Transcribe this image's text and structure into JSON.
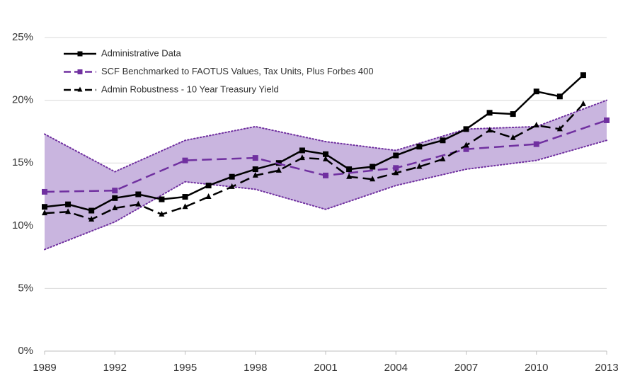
{
  "chart_data": {
    "type": "line",
    "xlim": [
      1989,
      2013
    ],
    "xticks": [
      1989,
      1992,
      1995,
      1998,
      2001,
      2004,
      2007,
      2010,
      2013
    ],
    "ylim": [
      0,
      25
    ],
    "yticks": [
      {
        "value": 0,
        "label": "0%"
      },
      {
        "value": 5,
        "label": "5%"
      },
      {
        "value": 10,
        "label": "10%"
      },
      {
        "value": 15,
        "label": "15%"
      },
      {
        "value": 20,
        "label": "20%"
      },
      {
        "value": 25,
        "label": "25%"
      }
    ],
    "grid": true,
    "legend": "top-left",
    "band": {
      "color": "#c9b5df",
      "edge_color": "#7030a0",
      "x": [
        1989,
        1992,
        1995,
        1998,
        2001,
        2004,
        2007,
        2010,
        2013
      ],
      "upper": [
        17.3,
        14.3,
        16.8,
        17.9,
        16.7,
        16.0,
        17.7,
        17.9,
        20.0
      ],
      "lower": [
        8.1,
        10.3,
        13.5,
        12.9,
        11.3,
        13.2,
        14.5,
        15.2,
        16.8
      ]
    },
    "series": [
      {
        "name": "Administrative Data",
        "color": "#000000",
        "dash": "solid",
        "marker": "square",
        "x": [
          1989,
          1990,
          1991,
          1992,
          1993,
          1994,
          1995,
          1996,
          1997,
          1998,
          1999,
          2000,
          2001,
          2002,
          2003,
          2004,
          2005,
          2006,
          2007,
          2008,
          2009,
          2010,
          2011,
          2012
        ],
        "values": [
          11.5,
          11.7,
          11.2,
          12.2,
          12.5,
          12.1,
          12.3,
          13.2,
          13.9,
          14.5,
          15.0,
          16.0,
          15.7,
          14.5,
          14.7,
          15.6,
          16.3,
          16.8,
          17.7,
          19.0,
          18.9,
          20.7,
          20.3,
          22.0
        ]
      },
      {
        "name": "SCF Benchmarked to FAOTUS Values, Tax Units, Plus Forbes 400",
        "color": "#7030a0",
        "dash": "dashed",
        "marker": "square",
        "x": [
          1989,
          1992,
          1995,
          1998,
          2001,
          2004,
          2007,
          2010,
          2013
        ],
        "values": [
          12.7,
          12.8,
          15.2,
          15.4,
          14.0,
          14.6,
          16.1,
          16.5,
          18.4
        ]
      },
      {
        "name": "Admin Robustness - 10 Year Treasury Yield",
        "color": "#000000",
        "dash": "dashed",
        "marker": "triangle",
        "x": [
          1989,
          1990,
          1991,
          1992,
          1993,
          1994,
          1995,
          1996,
          1997,
          1998,
          1999,
          2000,
          2001,
          2002,
          2003,
          2004,
          2005,
          2006,
          2007,
          2008,
          2009,
          2010,
          2011,
          2012
        ],
        "values": [
          11.0,
          11.1,
          10.5,
          11.4,
          11.7,
          10.9,
          11.5,
          12.3,
          13.1,
          14.0,
          14.4,
          15.4,
          15.3,
          13.9,
          13.7,
          14.2,
          14.7,
          15.3,
          16.4,
          17.6,
          17.0,
          18.0,
          17.7,
          19.7
        ]
      }
    ]
  }
}
